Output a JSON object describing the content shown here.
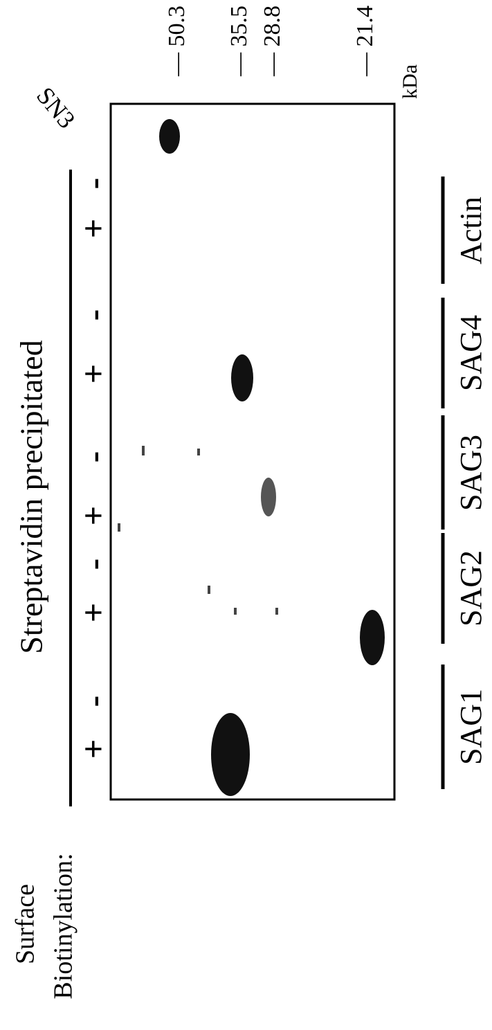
{
  "title": "Streptavidin precipitated",
  "row_label": [
    "Surface",
    "Biotinylation:"
  ],
  "lanes": [
    "+",
    "-",
    "+",
    "-",
    "+",
    "-",
    "+",
    "-",
    "+",
    "-"
  ],
  "groups": [
    "SAG1",
    "SAG2",
    "SAG3",
    "SAG4",
    "Actin"
  ],
  "markers": [
    "— 50.3",
    "— 35.5",
    "— 28.8",
    "— 21.4"
  ],
  "unit": "kDa",
  "corner_label": "SN3"
}
